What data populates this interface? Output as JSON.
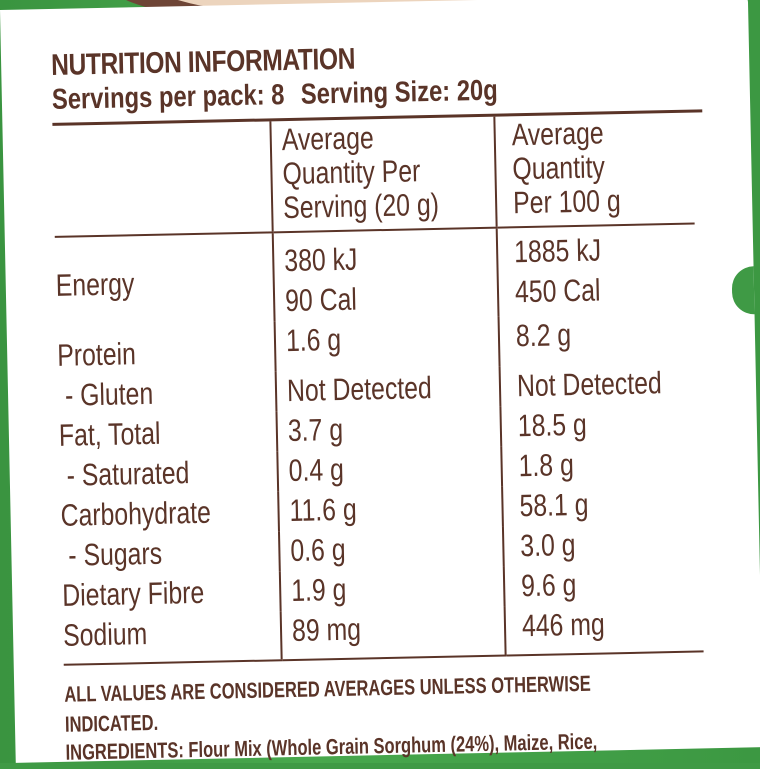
{
  "panel": {
    "title": "NUTRITION INFORMATION",
    "servings_per_pack": "Servings per pack: 8",
    "serving_size": "Serving Size: 20g"
  },
  "table": {
    "headers": {
      "per_serving": [
        "Average",
        "Quantity Per",
        "Serving (20 g)"
      ],
      "per_100g": [
        "Average",
        "Quantity",
        "Per 100 g"
      ]
    },
    "rows": [
      {
        "label": "Energy",
        "per_serving": [
          "380 kJ",
          "90 Cal"
        ],
        "per_100g": [
          "1885 kJ",
          "450 Cal"
        ]
      },
      {
        "label": "Protein",
        "per_serving": [
          "1.6 g"
        ],
        "per_100g": [
          "8.2 g"
        ]
      },
      {
        "label": " - Gluten",
        "per_serving": [
          "Not Detected"
        ],
        "per_100g": [
          "Not Detected"
        ]
      },
      {
        "label": "Fat, Total",
        "per_serving": [
          "3.7 g"
        ],
        "per_100g": [
          "18.5 g"
        ]
      },
      {
        "label": " - Saturated",
        "per_serving": [
          "0.4 g"
        ],
        "per_100g": [
          "1.8 g"
        ]
      },
      {
        "label": "Carbohydrate",
        "per_serving": [
          "11.6 g"
        ],
        "per_100g": [
          "58.1 g"
        ]
      },
      {
        "label": " - Sugars",
        "per_serving": [
          "0.6 g"
        ],
        "per_100g": [
          "3.0 g"
        ]
      },
      {
        "label": "Dietary Fibre",
        "per_serving": [
          "1.9 g"
        ],
        "per_100g": [
          "9.6 g"
        ]
      },
      {
        "label": "Sodium",
        "per_serving": [
          "89 mg"
        ],
        "per_100g": [
          "446 mg"
        ]
      }
    ]
  },
  "footnote": [
    "ALL VALUES ARE CONSIDERED AVERAGES UNLESS OTHERWISE",
    "INDICATED."
  ],
  "ingredients_partial": "INGREDIENTS: Flour Mix (Whole Grain Sorghum (24%), Maize, Rice,",
  "colors": {
    "text": "#5a3428",
    "background_green": "#3f9a45",
    "panel": "#ffffff"
  }
}
